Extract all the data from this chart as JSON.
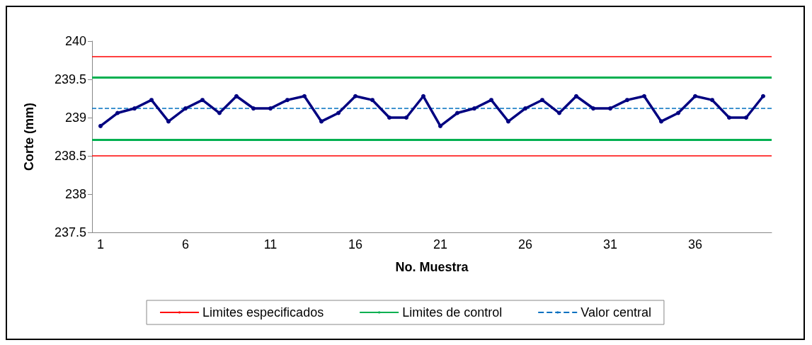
{
  "chart_data": {
    "type": "line",
    "xlabel": "No. Muestra",
    "ylabel": "Corte (mm)",
    "categories": [
      "1",
      null,
      null,
      null,
      null,
      "6",
      null,
      null,
      null,
      null,
      "11",
      null,
      null,
      null,
      null,
      "16",
      null,
      null,
      null,
      null,
      "21",
      null,
      null,
      null,
      null,
      "26",
      null,
      null,
      null,
      null,
      "31",
      null,
      null,
      null,
      null,
      "36",
      null,
      null,
      null,
      null
    ],
    "series": [
      {
        "color": "#000080",
        "values": [
          238.89,
          239.06,
          239.12,
          239.23,
          238.95,
          239.12,
          239.23,
          239.06,
          239.28,
          239.12,
          239.12,
          239.23,
          239.28,
          238.95,
          239.06,
          239.28,
          239.23,
          239.0,
          239.0,
          239.28,
          238.89,
          239.06,
          239.12,
          239.23,
          238.95,
          239.12,
          239.23,
          239.06,
          239.28,
          239.12,
          239.12,
          239.23,
          239.28,
          238.95,
          239.06,
          239.28,
          239.23,
          239.0,
          239.0,
          239.28
        ]
      }
    ],
    "ylim": [
      237.5,
      240
    ],
    "yticks": [
      237.5,
      238,
      238.5,
      239,
      239.5,
      240
    ],
    "ref_lines": [
      {
        "axis": "y",
        "value": 239.8,
        "label": "Limites especificados",
        "color": "#ff0000",
        "line_style": "solid"
      },
      {
        "axis": "y",
        "value": 238.5,
        "color": "#ff0000",
        "line_style": "solid"
      },
      {
        "axis": "y",
        "value": 239.53,
        "label": "Limites de control",
        "color": "#00b050",
        "line_style": "solid"
      },
      {
        "axis": "y",
        "value": 238.71,
        "color": "#00b050",
        "line_style": "solid"
      },
      {
        "axis": "y",
        "value": 239.12,
        "label": "Valor central",
        "color": "#0070c0",
        "line_style": "dashed"
      }
    ],
    "grid": false,
    "legend": "bottom",
    "marker": "circle",
    "line_style": "solid"
  }
}
